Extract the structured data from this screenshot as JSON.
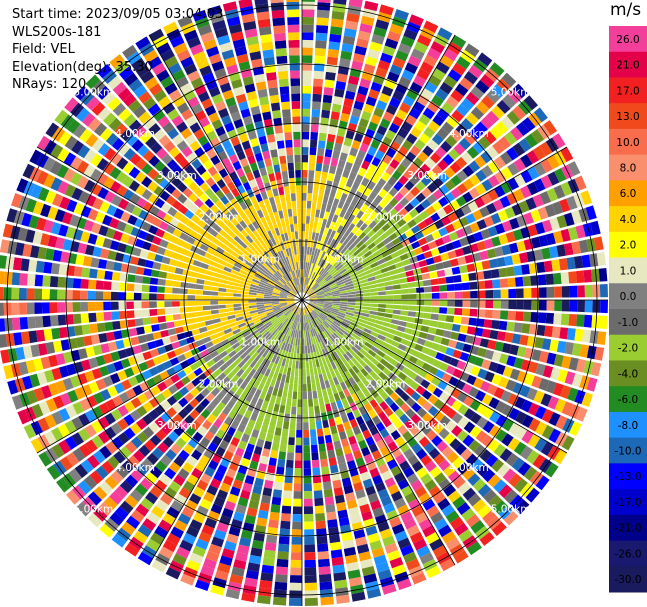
{
  "info": {
    "start_time": "Start time: 2023/09/05 03:04:03",
    "instrument": "WLS200s-181",
    "field": "Field: VEL",
    "elevation": "Elevation(deg): 35.30",
    "nrays": "NRays: 120"
  },
  "colorbar": {
    "unit": "m/s",
    "ticks": [
      "26.0",
      "21.0",
      "17.0",
      "13.0",
      "10.0",
      "8.0",
      "6.0",
      "4.0",
      "2.0",
      "1.0",
      "0.0",
      "-1.0",
      "-2.0",
      "-4.0",
      "-6.0",
      "-8.0",
      "-10.0",
      "-13.0",
      "-17.0",
      "-21.0",
      "-26.0",
      "-30.0"
    ],
    "colors": [
      "#f43f9a",
      "#e5004a",
      "#f22020",
      "#f04a1c",
      "#fa6d4c",
      "#fa8f6e",
      "#ff9f00",
      "#ffd200",
      "#ffff00",
      "#e8e8c0",
      "#808080",
      "#6b6b6b",
      "#9acd32",
      "#6b8e23",
      "#228b22",
      "#1e90ff",
      "#1e68b8",
      "#0000ff",
      "#0000cd",
      "#00008b",
      "#191970",
      "#1a1a5e"
    ]
  },
  "chart_data": {
    "type": "heatmap",
    "projection": "polar PPI",
    "field": "VEL",
    "units": "m/s",
    "nrays": 120,
    "range_rings_km": [
      1.0,
      2.0,
      3.0,
      4.0,
      5.0
    ],
    "ring_labels": [
      "1.00km",
      "2.00km",
      "3.00km",
      "4.00km",
      "5.00km"
    ],
    "spokes_deg": [
      0,
      30,
      60,
      90,
      120,
      150,
      180,
      210,
      240,
      270,
      300,
      330
    ],
    "value_range": [
      -30.0,
      26.0
    ],
    "pattern": {
      "inner_range_km": [
        0,
        2.2
      ],
      "inner_values": "mostly 0.0 (grey), positive ~+2 (yellow) toward north-west/west, negative ~-2 (green) toward east/south",
      "outer_range_km": [
        2.2,
        5.8
      ],
      "outer_values": "noisy random velocities across full scale"
    }
  }
}
